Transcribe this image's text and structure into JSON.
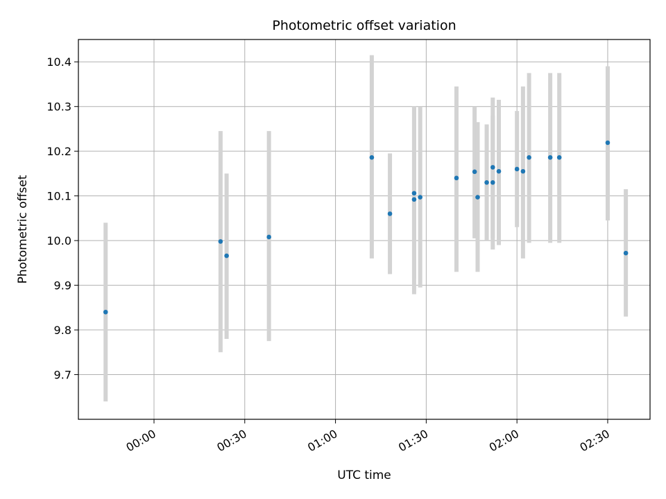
{
  "chart_data": {
    "type": "scatter",
    "title": "Photometric offset variation",
    "xlabel": "UTC time",
    "ylabel": "Photometric offset",
    "grid": true,
    "xlim": [
      "23:35",
      "02:44"
    ],
    "ylim": [
      9.6,
      10.45
    ],
    "x_ticks": [
      "00:00",
      "00:30",
      "01:00",
      "01:30",
      "02:00",
      "02:30"
    ],
    "y_ticks": [
      9.7,
      9.8,
      9.9,
      10.0,
      10.1,
      10.2,
      10.3,
      10.4
    ],
    "colors": {
      "points": "#1f77b4",
      "error_bars": "#d3d3d3",
      "grid": "#b0b0b0"
    },
    "points": [
      {
        "x": "23:44",
        "y": 9.84,
        "err_low": 9.64,
        "err_high": 10.04
      },
      {
        "x": "00:22",
        "y": 9.998,
        "err_low": 9.75,
        "err_high": 10.245
      },
      {
        "x": "00:24",
        "y": 9.966,
        "err_low": 9.78,
        "err_high": 10.15
      },
      {
        "x": "00:38",
        "y": 10.008,
        "err_low": 9.775,
        "err_high": 10.245
      },
      {
        "x": "01:12",
        "y": 10.186,
        "err_low": 9.96,
        "err_high": 10.415
      },
      {
        "x": "01:18",
        "y": 10.06,
        "err_low": 9.925,
        "err_high": 10.195
      },
      {
        "x": "01:26",
        "y": 10.092,
        "err_low": 9.88,
        "err_high": 10.3
      },
      {
        "x": "01:26",
        "y": 10.106,
        "err_low": 9.915,
        "err_high": 10.3
      },
      {
        "x": "01:28",
        "y": 10.097,
        "err_low": 9.895,
        "err_high": 10.3
      },
      {
        "x": "01:40",
        "y": 10.14,
        "err_low": 9.93,
        "err_high": 10.345
      },
      {
        "x": "01:46",
        "y": 10.154,
        "err_low": 10.005,
        "err_high": 10.3
      },
      {
        "x": "01:47",
        "y": 10.097,
        "err_low": 9.93,
        "err_high": 10.265
      },
      {
        "x": "01:50",
        "y": 10.13,
        "err_low": 10.0,
        "err_high": 10.26
      },
      {
        "x": "01:52",
        "y": 10.13,
        "err_low": 9.98,
        "err_high": 10.28
      },
      {
        "x": "01:52",
        "y": 10.164,
        "err_low": 10.005,
        "err_high": 10.32
      },
      {
        "x": "01:54",
        "y": 10.155,
        "err_low": 9.99,
        "err_high": 10.315
      },
      {
        "x": "02:00",
        "y": 10.16,
        "err_low": 10.03,
        "err_high": 10.29
      },
      {
        "x": "02:02",
        "y": 10.155,
        "err_low": 9.96,
        "err_high": 10.345
      },
      {
        "x": "02:04",
        "y": 10.186,
        "err_low": 9.995,
        "err_high": 10.375
      },
      {
        "x": "02:11",
        "y": 10.186,
        "err_low": 9.995,
        "err_high": 10.375
      },
      {
        "x": "02:14",
        "y": 10.186,
        "err_low": 9.995,
        "err_high": 10.375
      },
      {
        "x": "02:30",
        "y": 10.219,
        "err_low": 10.045,
        "err_high": 10.39
      },
      {
        "x": "02:36",
        "y": 9.972,
        "err_low": 9.83,
        "err_high": 10.115
      }
    ]
  }
}
